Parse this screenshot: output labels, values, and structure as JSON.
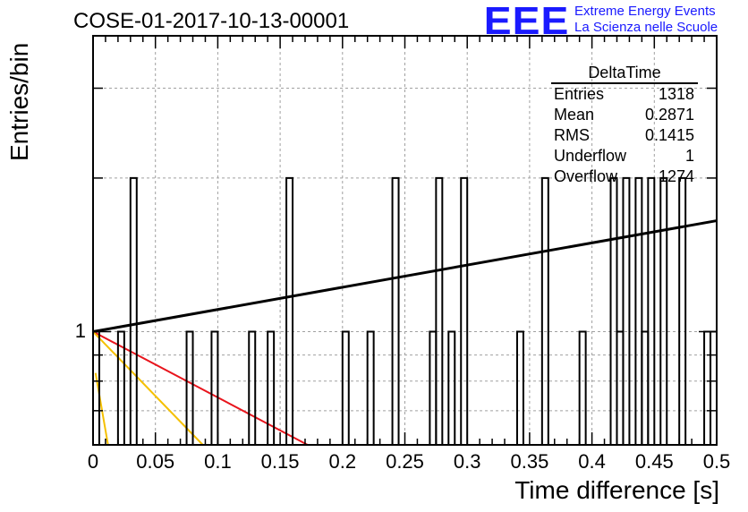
{
  "title": "COSE-01-2017-10-13-00001",
  "logo": {
    "mark": "EEE",
    "line1": "Extreme Energy Events",
    "line2": "La Scienza nelle Scuole"
  },
  "stats": {
    "title": "DeltaTime",
    "rows": [
      {
        "label": "Entries",
        "value": "1318"
      },
      {
        "label": "Mean",
        "value": "0.2871"
      },
      {
        "label": "RMS",
        "value": "0.1415"
      },
      {
        "label": "Underflow",
        "value": "1"
      },
      {
        "label": "Overflow",
        "value": "1274"
      }
    ]
  },
  "chart_data": {
    "type": "bar",
    "title": "COSE-01-2017-10-13-00001",
    "xlabel": "Time difference [s]",
    "ylabel": "Entries/bin",
    "xlim": [
      0,
      0.5
    ],
    "ylim_log": [
      0.6,
      3.8
    ],
    "log_y": true,
    "grid": true,
    "x_ticks": [
      "0",
      "0.05",
      "0.1",
      "0.15",
      "0.2",
      "0.25",
      "0.3",
      "0.35",
      "0.4",
      "0.45",
      "0.5"
    ],
    "y_tick_labels": [
      "1"
    ],
    "bin_width": 0.005,
    "histogram_bins": [
      {
        "x": 0.0,
        "count": 1
      },
      {
        "x": 0.02,
        "count": 1
      },
      {
        "x": 0.03,
        "count": 2
      },
      {
        "x": 0.075,
        "count": 1
      },
      {
        "x": 0.095,
        "count": 1
      },
      {
        "x": 0.125,
        "count": 1
      },
      {
        "x": 0.14,
        "count": 1
      },
      {
        "x": 0.155,
        "count": 2
      },
      {
        "x": 0.2,
        "count": 1
      },
      {
        "x": 0.22,
        "count": 1
      },
      {
        "x": 0.24,
        "count": 2
      },
      {
        "x": 0.27,
        "count": 1
      },
      {
        "x": 0.275,
        "count": 2
      },
      {
        "x": 0.285,
        "count": 1
      },
      {
        "x": 0.295,
        "count": 2
      },
      {
        "x": 0.34,
        "count": 1
      },
      {
        "x": 0.36,
        "count": 2
      },
      {
        "x": 0.39,
        "count": 1
      },
      {
        "x": 0.415,
        "count": 2
      },
      {
        "x": 0.42,
        "count": 1
      },
      {
        "x": 0.425,
        "count": 2
      },
      {
        "x": 0.435,
        "count": 2
      },
      {
        "x": 0.44,
        "count": 1
      },
      {
        "x": 0.445,
        "count": 2
      },
      {
        "x": 0.455,
        "count": 2
      },
      {
        "x": 0.47,
        "count": 2
      },
      {
        "x": 0.49,
        "count": 1
      },
      {
        "x": 0.495,
        "count": 1
      }
    ],
    "fit_lines": [
      {
        "color": "#000000",
        "x": [
          0,
          0.5
        ],
        "y": [
          1.0,
          1.65
        ]
      },
      {
        "color": "#e8141c",
        "x": [
          0,
          0.172
        ],
        "y": [
          1.0,
          0.6
        ]
      },
      {
        "color": "#f5c000",
        "x": [
          0,
          0.088
        ],
        "y": [
          1.0,
          0.6
        ]
      },
      {
        "color": "#f5c000",
        "x": [
          0.002,
          0.012
        ],
        "y": [
          0.83,
          0.6
        ]
      }
    ]
  }
}
